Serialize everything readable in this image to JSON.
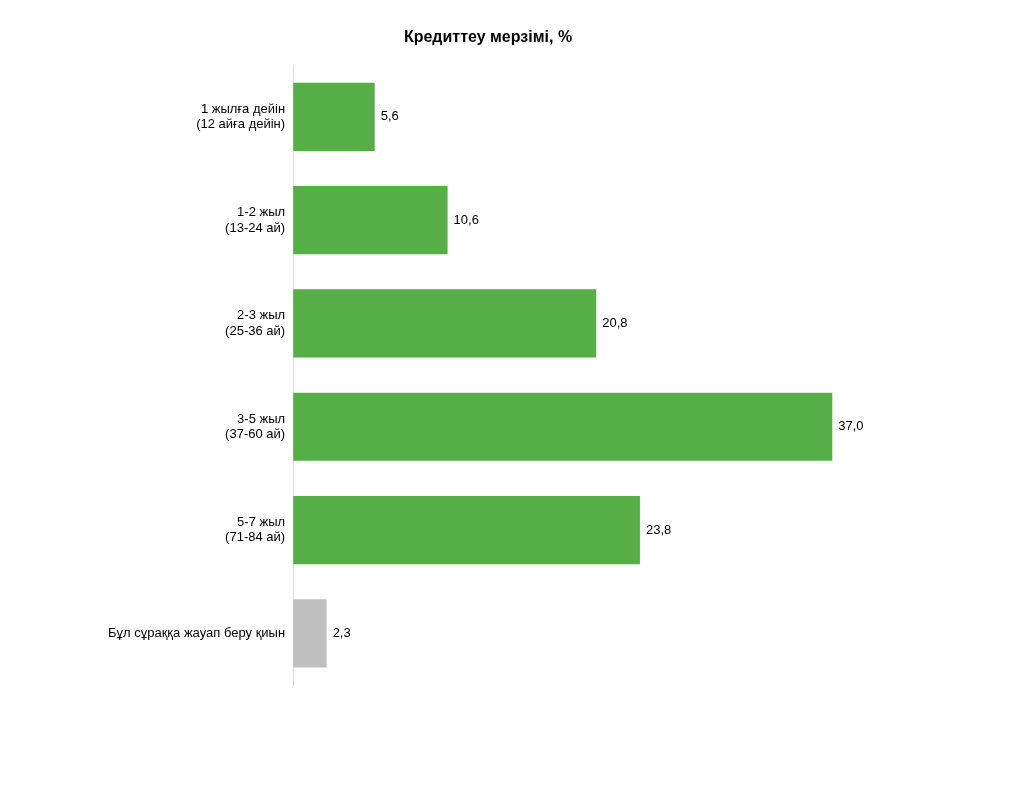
{
  "chart_data": {
    "type": "bar",
    "orientation": "horizontal",
    "title": "Кредиттеу мерзімі, %",
    "categories": [
      "1 жылға дейін\n(12 айға дейін)",
      "1-2 жыл\n(13-24 ай)",
      "2-3 жыл\n(25-36 ай)",
      "3-5 жыл\n(37-60 ай)",
      "5-7 жыл\n(71-84 ай)",
      "Бұл сұраққа жауап беру қиын"
    ],
    "values": [
      5.6,
      10.6,
      20.8,
      37.0,
      23.8,
      2.3
    ],
    "colors": [
      "#56ae46",
      "#56ae46",
      "#56ae46",
      "#56ae46",
      "#56ae46",
      "#c0bfc0"
    ],
    "value_labels": [
      "5,6",
      "10,6",
      "20,8",
      "37,0",
      "23,8",
      "2,3"
    ],
    "tick_labels": "y",
    "legend": false
  }
}
